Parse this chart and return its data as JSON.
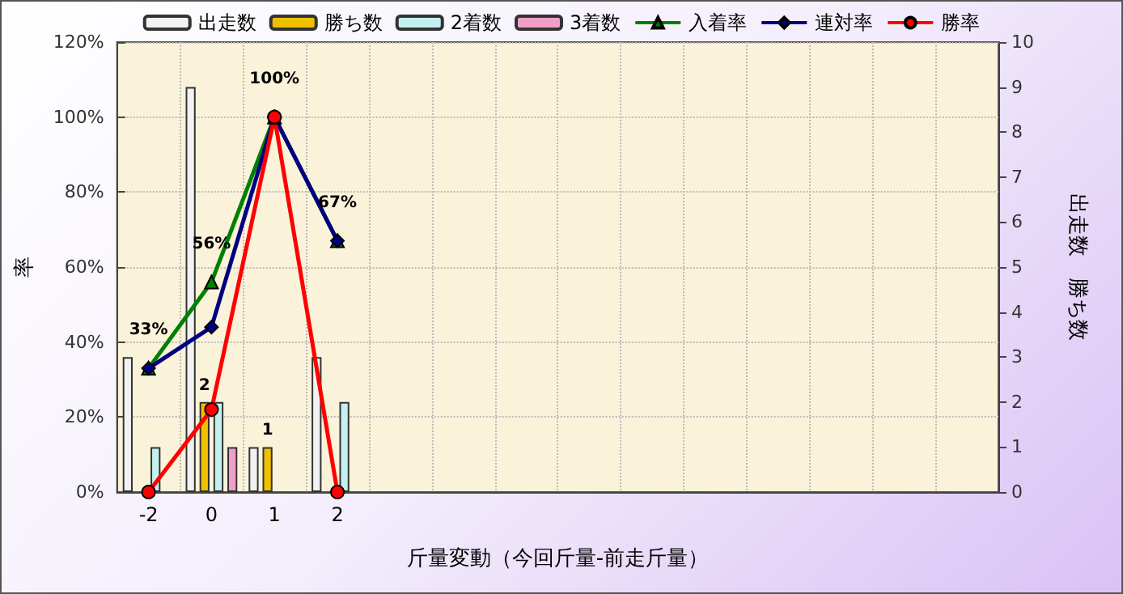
{
  "chart_data": {
    "type": "bar",
    "xlabel": "斤量変動（今回斤量-前走斤量）",
    "ylabel": "率",
    "y2label": "出走数　勝ち数",
    "categories": [
      "-2",
      "0",
      "1",
      "2",
      null,
      null,
      null,
      null,
      null,
      null,
      null,
      null,
      null,
      null
    ],
    "series": [
      {
        "name": "出走数",
        "axis": "y2",
        "color": "#f2f2f2",
        "values": [
          3,
          9,
          1,
          3,
          null,
          null,
          null,
          null,
          null,
          null,
          null,
          null,
          null,
          null
        ]
      },
      {
        "name": "勝ち数",
        "axis": "y2",
        "color": "#f0c000",
        "values": [
          0,
          2,
          1,
          0,
          null,
          null,
          null,
          null,
          null,
          null,
          null,
          null,
          null,
          null
        ],
        "value_labels": [
          null,
          "2",
          "1",
          null,
          null,
          null,
          null,
          null,
          null,
          null,
          null,
          null,
          null,
          null
        ]
      },
      {
        "name": "2着数",
        "axis": "y2",
        "color": "#c4f0f0",
        "values": [
          1,
          2,
          0,
          2,
          null,
          null,
          null,
          null,
          null,
          null,
          null,
          null,
          null,
          null
        ]
      },
      {
        "name": "3着数",
        "axis": "y2",
        "color": "#f0a0c8",
        "values": [
          0,
          1,
          0,
          0,
          null,
          null,
          null,
          null,
          null,
          null,
          null,
          null,
          null,
          null
        ]
      },
      {
        "name": "入着率",
        "type": "line",
        "color": "#008000",
        "marker": "triangle",
        "values": [
          33,
          56,
          100,
          67,
          null,
          null,
          null,
          null,
          null,
          null,
          null,
          null,
          null,
          null
        ],
        "value_labels": [
          "33%",
          "56%",
          "100%",
          "67%",
          null,
          null,
          null,
          null,
          null,
          null,
          null,
          null,
          null,
          null
        ]
      },
      {
        "name": "連対率",
        "type": "line",
        "color": "#000080",
        "marker": "diamond",
        "values": [
          33,
          44,
          100,
          67,
          null,
          null,
          null,
          null,
          null,
          null,
          null,
          null,
          null,
          null
        ]
      },
      {
        "name": "勝率",
        "type": "line",
        "color": "#ff0000",
        "marker": "circle",
        "values": [
          0,
          22,
          100,
          0,
          null,
          null,
          null,
          null,
          null,
          null,
          null,
          null,
          null,
          null
        ]
      }
    ],
    "ylim": [
      0,
      120
    ],
    "yticks": [
      {
        "value": 0,
        "label": "0%"
      },
      {
        "value": 20,
        "label": "20%"
      },
      {
        "value": 40,
        "label": "40%"
      },
      {
        "value": 60,
        "label": "60%"
      },
      {
        "value": 80,
        "label": "80%"
      },
      {
        "value": 100,
        "label": "100%"
      },
      {
        "value": 120,
        "label": "120%"
      }
    ],
    "y2lim": [
      0,
      10
    ],
    "y2ticks": [
      0,
      1,
      2,
      3,
      4,
      5,
      6,
      7,
      8,
      9,
      10
    ],
    "grid": true,
    "legend": "top"
  }
}
